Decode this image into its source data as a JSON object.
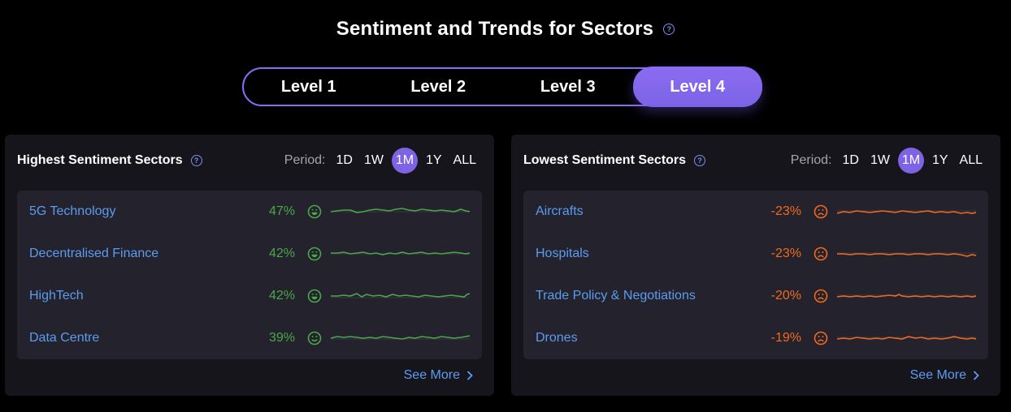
{
  "header": {
    "title": "Sentiment and Trends for Sectors",
    "help_icon": "?"
  },
  "levels": [
    {
      "label": "Level 1",
      "active": false
    },
    {
      "label": "Level 2",
      "active": false
    },
    {
      "label": "Level 3",
      "active": false
    },
    {
      "label": "Level 4",
      "active": true
    }
  ],
  "colors": {
    "accent": "#7e63e4",
    "positive": "#49a84a",
    "negative": "#f26a1f",
    "link": "#5b9cf0"
  },
  "period": {
    "label": "Period:",
    "options": [
      "1D",
      "1W",
      "1M",
      "1Y",
      "ALL"
    ],
    "selected": "1M"
  },
  "highest": {
    "title": "Highest Sentiment Sectors",
    "rows": [
      {
        "name": "5G Technology",
        "pct": "47%",
        "icon": "happy-face-icon"
      },
      {
        "name": "Decentralised Finance",
        "pct": "42%",
        "icon": "happy-face-icon"
      },
      {
        "name": "HighTech",
        "pct": "42%",
        "icon": "happy-face-icon"
      },
      {
        "name": "Data Centre",
        "pct": "39%",
        "icon": "smile-face-icon"
      }
    ],
    "see_more": "See More"
  },
  "lowest": {
    "title": "Lowest Sentiment Sectors",
    "rows": [
      {
        "name": "Aircrafts",
        "pct": "-23%",
        "icon": "sad-face-icon"
      },
      {
        "name": "Hospitals",
        "pct": "-23%",
        "icon": "sad-face-icon"
      },
      {
        "name": "Trade Policy & Negotiations",
        "pct": "-20%",
        "icon": "sad-face-icon"
      },
      {
        "name": "Drones",
        "pct": "-19%",
        "icon": "sad-face-icon"
      }
    ],
    "see_more": "See More"
  }
}
